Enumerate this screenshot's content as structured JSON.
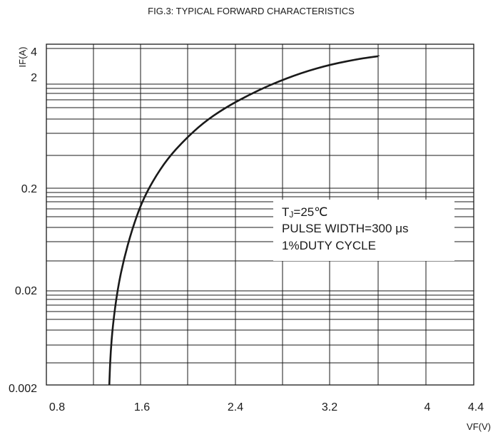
{
  "chart_data": {
    "type": "line",
    "title": "FIG.3: TYPICAL FORWARD CHARACTERISTICS",
    "xlabel": "VF(V)",
    "ylabel": "IF(A)",
    "x_scale": "linear",
    "y_scale": "log",
    "xlim": [
      0.8,
      4.4
    ],
    "ylim": [
      0.002,
      4
    ],
    "x_ticks": [
      "0.8",
      "1.6",
      "2.4",
      "3.2",
      "4",
      "4.4"
    ],
    "y_ticks": [
      "0.002",
      "0.02",
      "0.2",
      "2",
      "4"
    ],
    "grid": true,
    "series": [
      {
        "x": [
          1.33,
          1.34,
          1.36,
          1.4,
          1.45,
          1.52,
          1.6,
          1.7,
          1.82,
          1.96,
          2.12,
          2.3,
          2.5,
          2.7,
          2.95,
          3.2,
          3.45,
          3.6
        ],
        "y": [
          0.002,
          0.004,
          0.008,
          0.018,
          0.035,
          0.07,
          0.13,
          0.22,
          0.36,
          0.55,
          0.82,
          1.15,
          1.55,
          2.0,
          2.6,
          3.15,
          3.6,
          3.8
        ]
      }
    ],
    "annotations": [
      "TJ=25℃",
      "PULSE WIDTH=300 μs",
      "1%DUTY CYCLE"
    ]
  }
}
